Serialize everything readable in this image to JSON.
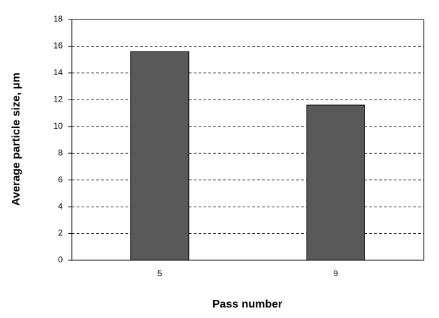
{
  "chart_data": {
    "type": "bar",
    "x_label": "Pass number",
    "y_label": "Average particle size, μm",
    "categories": [
      "5",
      "9"
    ],
    "values": [
      15.6,
      11.6
    ],
    "color": "#595959",
    "ylim": [
      0,
      18
    ],
    "yticks": [
      0,
      2,
      4,
      6,
      8,
      10,
      12,
      14,
      16,
      18
    ],
    "grid": true
  }
}
